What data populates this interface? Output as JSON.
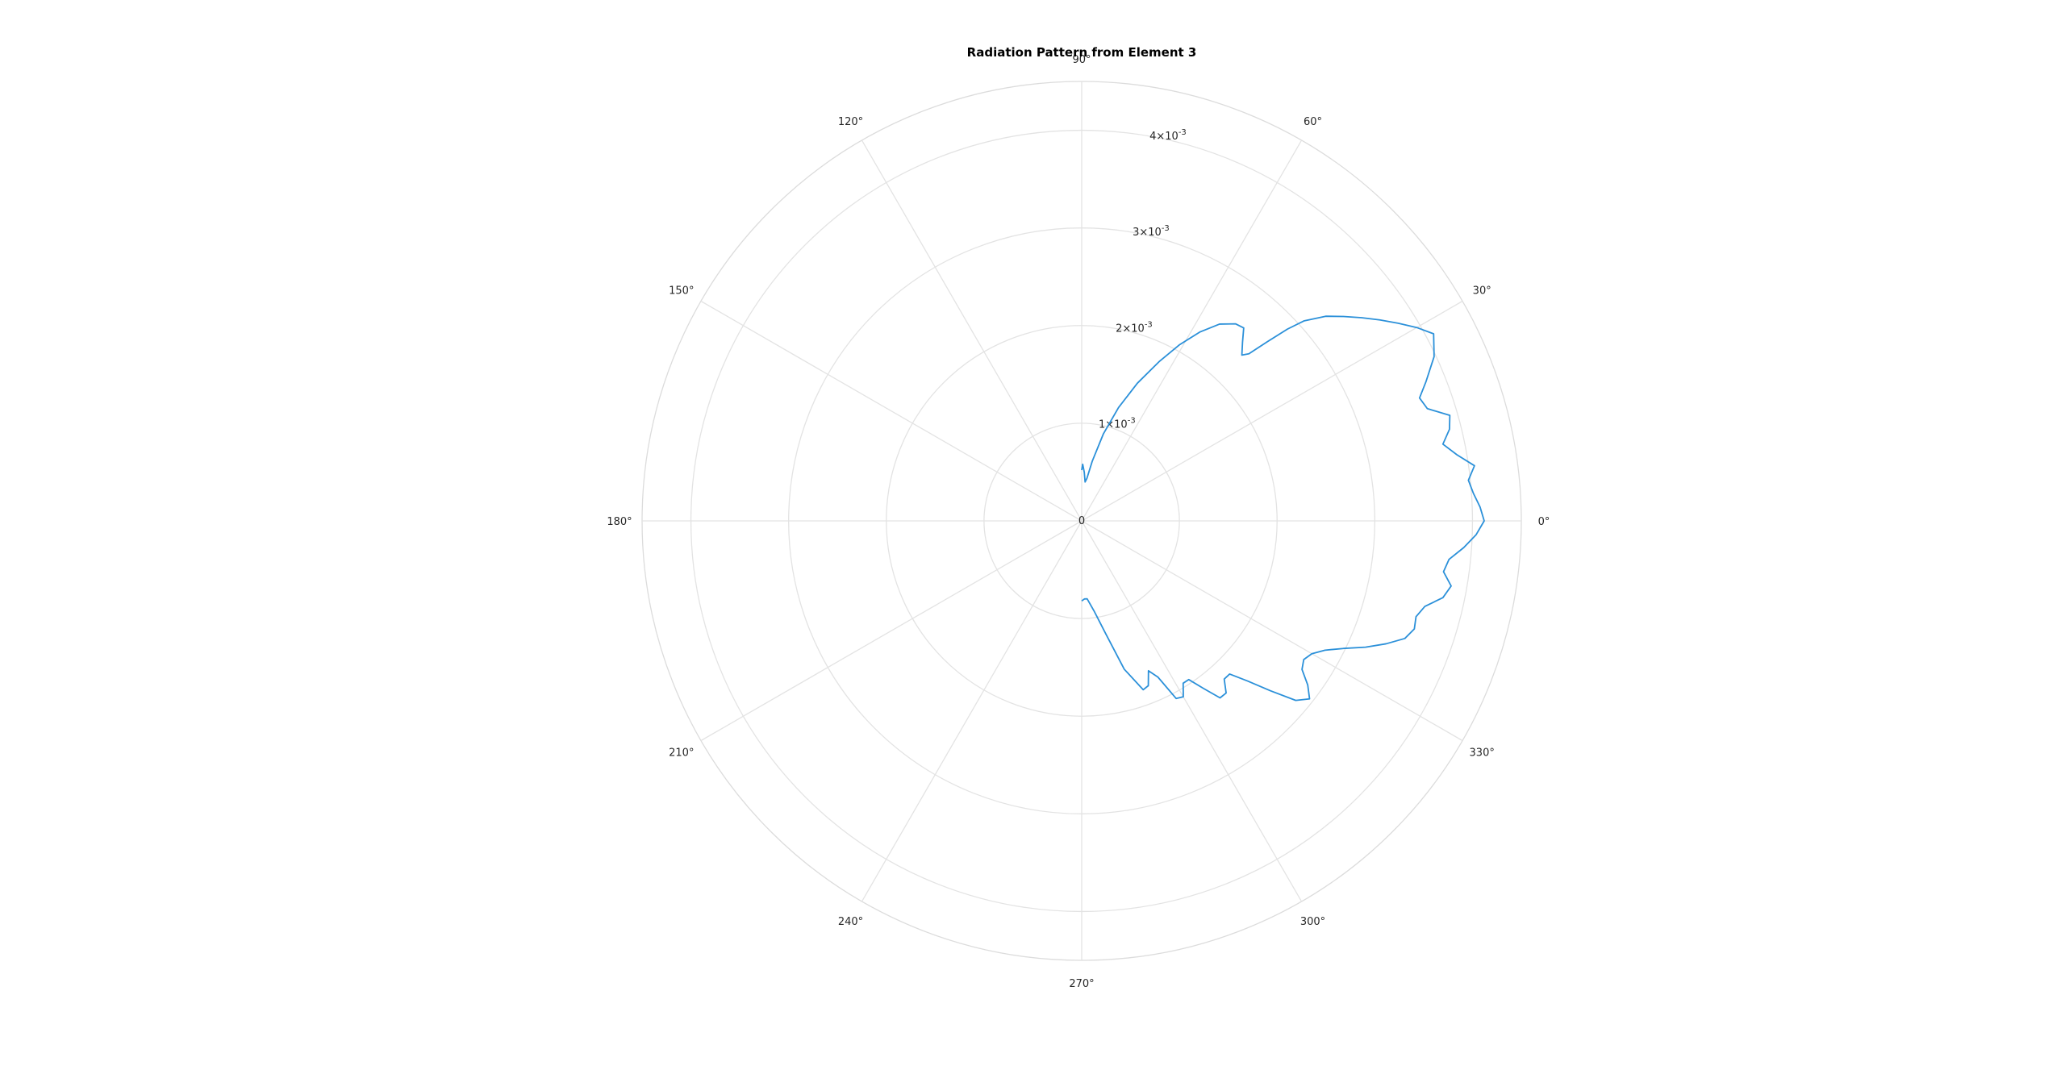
{
  "chart_data": {
    "type": "polar-line",
    "title": "Radiation Pattern from Element 3",
    "theta_unit": "degrees",
    "theta_ticks": [
      0,
      30,
      60,
      90,
      120,
      150,
      180,
      210,
      240,
      270,
      300,
      330
    ],
    "theta_tick_labels": [
      "0°",
      "30°",
      "60°",
      "90°",
      "120°",
      "150°",
      "180°",
      "210°",
      "240°",
      "270°",
      "300°",
      "330°"
    ],
    "r_ticks": [
      0,
      0.001,
      0.002,
      0.003,
      0.004
    ],
    "r_tick_labels": [
      {
        "mantissa": "0",
        "exponent": ""
      },
      {
        "mantissa": "1",
        "exponent": "-3"
      },
      {
        "mantissa": "2",
        "exponent": "-3"
      },
      {
        "mantissa": "3",
        "exponent": "-3"
      },
      {
        "mantissa": "4",
        "exponent": "-3"
      }
    ],
    "r_tick_angle": 80,
    "rlim": [
      0,
      0.0045
    ],
    "grid": true,
    "color": "#2b90d9",
    "series": [
      {
        "theta": [
          90,
          89,
          87,
          85,
          83,
          80,
          76,
          72,
          68,
          64,
          61,
          58,
          55,
          52,
          50,
          48,
          46,
          45,
          44,
          43,
          42,
          40,
          38,
          36,
          34,
          32,
          30,
          28,
          25,
          22,
          20,
          18,
          16,
          14,
          12,
          10,
          8,
          6,
          4,
          2,
          0,
          -2,
          -4,
          -6,
          -8,
          -10,
          -12,
          -14,
          -16,
          -18,
          -20,
          -22,
          -24,
          -26,
          -28,
          -30,
          -32,
          -34,
          -36,
          -38,
          -40,
          -42,
          -44,
          -46,
          -48,
          -50,
          -52,
          -54,
          -56,
          -58,
          -60,
          -62,
          -64,
          -66,
          -68,
          -70,
          -74,
          -78,
          -82,
          -86,
          -88,
          -90
        ],
        "r": [
          0.00052,
          0.00058,
          0.0005,
          0.0004,
          0.00044,
          0.00062,
          0.00092,
          0.00122,
          0.00152,
          0.00182,
          0.00206,
          0.00228,
          0.00246,
          0.00256,
          0.00258,
          0.00246,
          0.00236,
          0.00242,
          0.00264,
          0.00288,
          0.00306,
          0.00326,
          0.0034,
          0.00354,
          0.00368,
          0.00382,
          0.00396,
          0.00408,
          0.00398,
          0.0038,
          0.00368,
          0.00372,
          0.00392,
          0.00388,
          0.00378,
          0.0039,
          0.00406,
          0.00398,
          0.00402,
          0.00408,
          0.00412,
          0.00404,
          0.00392,
          0.00378,
          0.00374,
          0.00384,
          0.00378,
          0.00362,
          0.00356,
          0.00358,
          0.00352,
          0.00336,
          0.00318,
          0.00298,
          0.00282,
          0.00272,
          0.00268,
          0.00272,
          0.00286,
          0.00296,
          0.00286,
          0.0026,
          0.00236,
          0.00218,
          0.00218,
          0.0023,
          0.0023,
          0.00212,
          0.00196,
          0.00196,
          0.00208,
          0.00206,
          0.00178,
          0.00168,
          0.00182,
          0.00184,
          0.00158,
          0.00118,
          0.00094,
          0.0008,
          0.0008,
          0.00082
        ]
      }
    ]
  }
}
